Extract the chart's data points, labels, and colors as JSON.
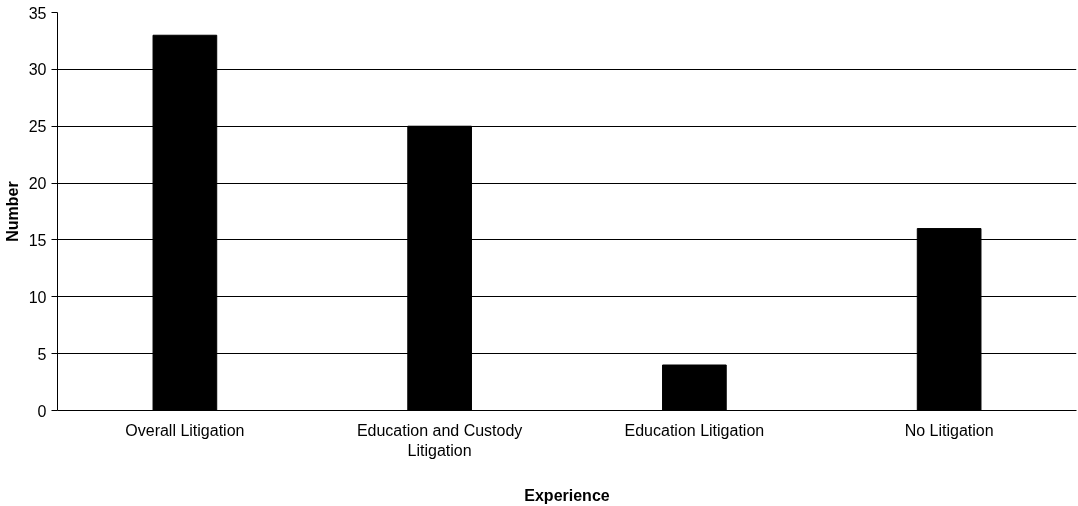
{
  "chart_data": {
    "type": "bar",
    "xlabel": "Experience",
    "ylabel": "Number",
    "categories": [
      "Overall Litigation",
      "Education and Custody Litigation",
      "Education Litigation",
      "No Litigation"
    ],
    "values": [
      33,
      25,
      4,
      16
    ],
    "color": "#000000",
    "ylim": [
      0,
      35
    ],
    "yticks": [
      0,
      5,
      10,
      15,
      20,
      25,
      30,
      35
    ],
    "grid": "y"
  }
}
